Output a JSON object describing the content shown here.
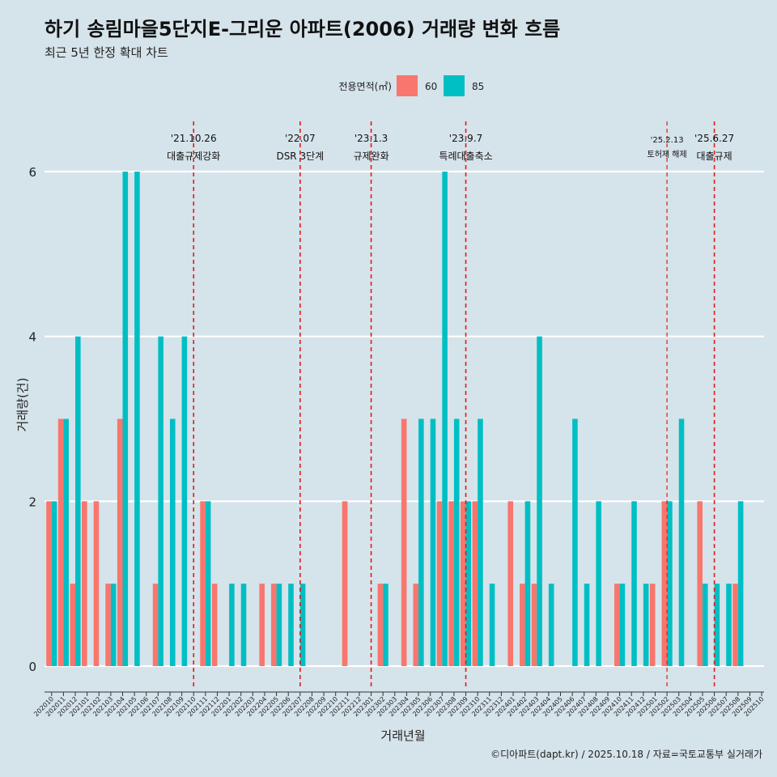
{
  "chart_data": {
    "type": "bar",
    "title": "하기 송림마을5단지E-그리운 아파트(2006) 거래량 변화 흐름",
    "subtitle": "최근 5년 한정 확대 차트",
    "xlabel": "거래년월",
    "ylabel": "거래량(건)",
    "ylim": [
      -0.3,
      6.6
    ],
    "yticks": [
      0,
      2,
      4,
      6
    ],
    "legend": {
      "title": "전용면적(㎡)",
      "position": "top"
    },
    "categories": [
      "202010",
      "202011",
      "202012",
      "202101",
      "202102",
      "202103",
      "202104",
      "202105",
      "202106",
      "202107",
      "202108",
      "202109",
      "202110",
      "202111",
      "202112",
      "202201",
      "202202",
      "202203",
      "202204",
      "202205",
      "202206",
      "202207",
      "202208",
      "202209",
      "202210",
      "202211",
      "202212",
      "202301",
      "202302",
      "202303",
      "202304",
      "202305",
      "202306",
      "202307",
      "202308",
      "202309",
      "202310",
      "202311",
      "202312",
      "202401",
      "202402",
      "202403",
      "202404",
      "202405",
      "202406",
      "202407",
      "202408",
      "202409",
      "202410",
      "202411",
      "202412",
      "202501",
      "202502",
      "202503",
      "202504",
      "202505",
      "202506",
      "202507",
      "202508",
      "202509",
      "202510"
    ],
    "series": [
      {
        "name": "60",
        "color": "#f8766d",
        "values": [
          2,
          3,
          1,
          2,
          2,
          1,
          3,
          0,
          0,
          1,
          0,
          0,
          0,
          2,
          1,
          0,
          0,
          0,
          1,
          1,
          0,
          0,
          0,
          0,
          0,
          2,
          0,
          0,
          1,
          0,
          3,
          1,
          0,
          2,
          2,
          2,
          2,
          0,
          0,
          2,
          1,
          1,
          0,
          0,
          0,
          0,
          0,
          0,
          1,
          0,
          0,
          1,
          2,
          0,
          0,
          2,
          0,
          0,
          1,
          0,
          0
        ]
      },
      {
        "name": "85",
        "color": "#00bfc4",
        "values": [
          2,
          3,
          4,
          0,
          0,
          1,
          6,
          6,
          0,
          4,
          3,
          4,
          0,
          2,
          0,
          1,
          1,
          0,
          0,
          1,
          1,
          1,
          0,
          0,
          0,
          0,
          0,
          0,
          1,
          0,
          0,
          3,
          3,
          6,
          3,
          2,
          3,
          1,
          0,
          0,
          2,
          4,
          1,
          0,
          3,
          1,
          2,
          0,
          1,
          2,
          1,
          0,
          2,
          3,
          0,
          1,
          1,
          1,
          2,
          0,
          0
        ]
      }
    ],
    "annotations": [
      {
        "index": 12,
        "date": "'21.10.26",
        "label": "대출규제강화",
        "small": false
      },
      {
        "index": 21,
        "date": "'22.07",
        "label": "DSR 3단계",
        "small": false
      },
      {
        "index": 27,
        "date": "'23.1.3",
        "label": "규제완화",
        "small": false
      },
      {
        "index": 35,
        "date": "'23.9.7",
        "label": "특례대출축소",
        "small": false
      },
      {
        "index": 52,
        "date": "'25.2.13",
        "label": "토허제 해제",
        "small": true
      },
      {
        "index": 56,
        "date": "'25.6.27",
        "label": "대출규제",
        "small": false
      }
    ]
  },
  "caption": "©디아파트(dapt.kr) / 2025.10.18 / 자료=국토교통부 실거래가"
}
